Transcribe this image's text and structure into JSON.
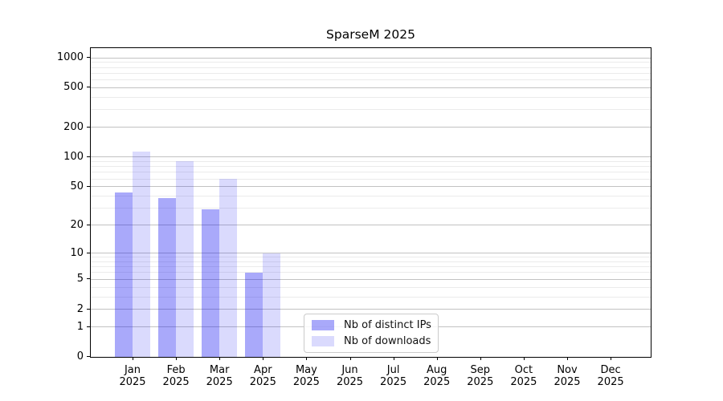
{
  "title": "SparseM 2025",
  "chart_data": {
    "type": "bar",
    "title": "SparseM 2025",
    "xlabel": "",
    "ylabel": "",
    "categories": [
      "Jan 2025",
      "Feb 2025",
      "Mar 2025",
      "Apr 2025",
      "May 2025",
      "Jun 2025",
      "Jul 2025",
      "Aug 2025",
      "Sep 2025",
      "Oct 2025",
      "Nov 2025",
      "Dec 2025"
    ],
    "series": [
      {
        "name": "Nb of distinct IPs",
        "color": "rgba(10,10,240,0.35)",
        "solid_hex": "#a9a9f8",
        "values": [
          44,
          38,
          29,
          6,
          null,
          null,
          null,
          null,
          null,
          null,
          null,
          null
        ]
      },
      {
        "name": "Nb of downloads",
        "color": "rgba(10,10,240,0.15)",
        "solid_hex": "#dadaf8",
        "values": [
          113,
          90,
          60,
          10,
          null,
          null,
          null,
          null,
          null,
          null,
          null,
          null
        ]
      }
    ],
    "y_scale": "log1p",
    "ylim": [
      0,
      1250
    ],
    "y_axis_top_value": 1250,
    "y_ticks": [
      0,
      1,
      2,
      5,
      10,
      20,
      50,
      100,
      200,
      500,
      1000
    ],
    "y_minor_ticks": [
      3,
      4,
      6,
      7,
      8,
      9,
      30,
      40,
      60,
      70,
      80,
      90,
      300,
      400,
      600,
      700,
      800,
      900
    ],
    "grid": "horizontal",
    "legend_position": "lower center"
  },
  "colors": {
    "major_grid": "#c2c2c2",
    "minor_grid": "#ebebeb",
    "axis": "#000000",
    "legend_border": "#cbcbcb",
    "background": "#ffffff"
  }
}
